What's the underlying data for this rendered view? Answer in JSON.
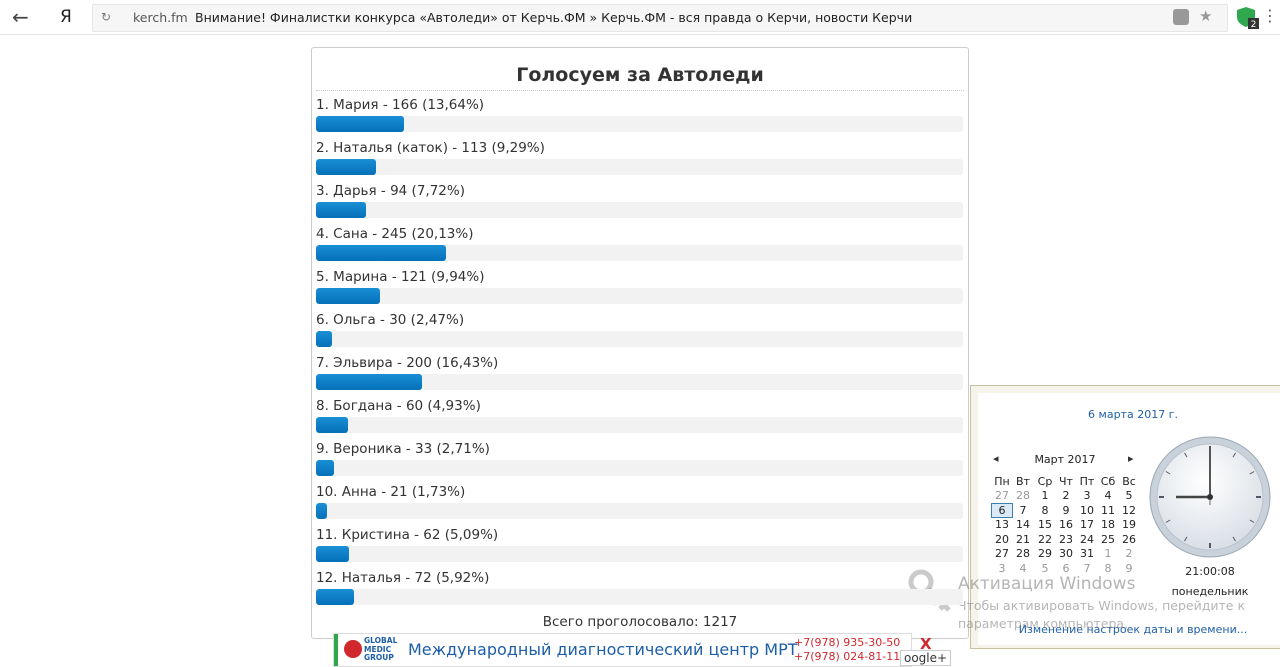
{
  "browser": {
    "domain": "kerch.fm",
    "page_title": "Внимание! Финалистки конкурса «Автоледи» от Керчь.ФМ » Керчь.ФМ - вся правда о Керчи, новости Керчи",
    "yandex": "Я",
    "badge": "2"
  },
  "poll": {
    "title": "Голосуем за Автоледи",
    "items": [
      {
        "label": "1. Мария - 166 (13,64%)",
        "share": 13.64
      },
      {
        "label": "2. Наталья (каток) - 113 (9,29%)",
        "share": 9.29
      },
      {
        "label": "3. Дарья - 94 (7,72%)",
        "share": 7.72
      },
      {
        "label": "4. Сана - 245 (20,13%)",
        "share": 20.13
      },
      {
        "label": "5. Марина - 121 (9,94%)",
        "share": 9.94
      },
      {
        "label": "6. Ольга - 30 (2,47%)",
        "share": 2.47
      },
      {
        "label": "7. Эльвира - 200 (16,43%)",
        "share": 16.43
      },
      {
        "label": "8. Богдана - 60 (4,93%)",
        "share": 4.93
      },
      {
        "label": "9. Вероника - 33 (2,71%)",
        "share": 2.71
      },
      {
        "label": "10. Анна - 21 (1,73%)",
        "share": 1.73
      },
      {
        "label": "11. Кристина - 62 (5,09%)",
        "share": 5.09
      },
      {
        "label": "12. Наталья - 72 (5,92%)",
        "share": 5.92
      }
    ],
    "total": "Всего проголосовало: 1217"
  },
  "ad": {
    "logo": "GLOBAL MEDIC GROUP",
    "text": "Международный диагностический центр МРТ",
    "phones": [
      "+7(978) 935-30-50",
      "+7(978) 024-81-11"
    ],
    "close": "X",
    "share": "oogle+"
  },
  "calendar": {
    "date": "6 марта 2017 г.",
    "month": "Март 2017",
    "prev": "◂",
    "next": "▸",
    "weekdays": [
      "Пн",
      "Вт",
      "Ср",
      "Чт",
      "Пт",
      "Сб",
      "Вс"
    ],
    "weeks": [
      [
        27,
        28,
        1,
        2,
        3,
        4,
        5
      ],
      [
        6,
        7,
        8,
        9,
        10,
        11,
        12
      ],
      [
        13,
        14,
        15,
        16,
        17,
        18,
        19
      ],
      [
        20,
        21,
        22,
        23,
        24,
        25,
        26
      ],
      [
        27,
        28,
        29,
        30,
        31,
        1,
        2
      ],
      [
        3,
        4,
        5,
        6,
        7,
        8,
        9
      ]
    ],
    "time": "21:00:08",
    "weekday": "понедельник",
    "settings_link": "Изменение настроек даты и времени..."
  },
  "watermark": {
    "title": "Активация Windows",
    "text": "Чтобы активировать Windows, перейдите к параметрам компьютера."
  }
}
